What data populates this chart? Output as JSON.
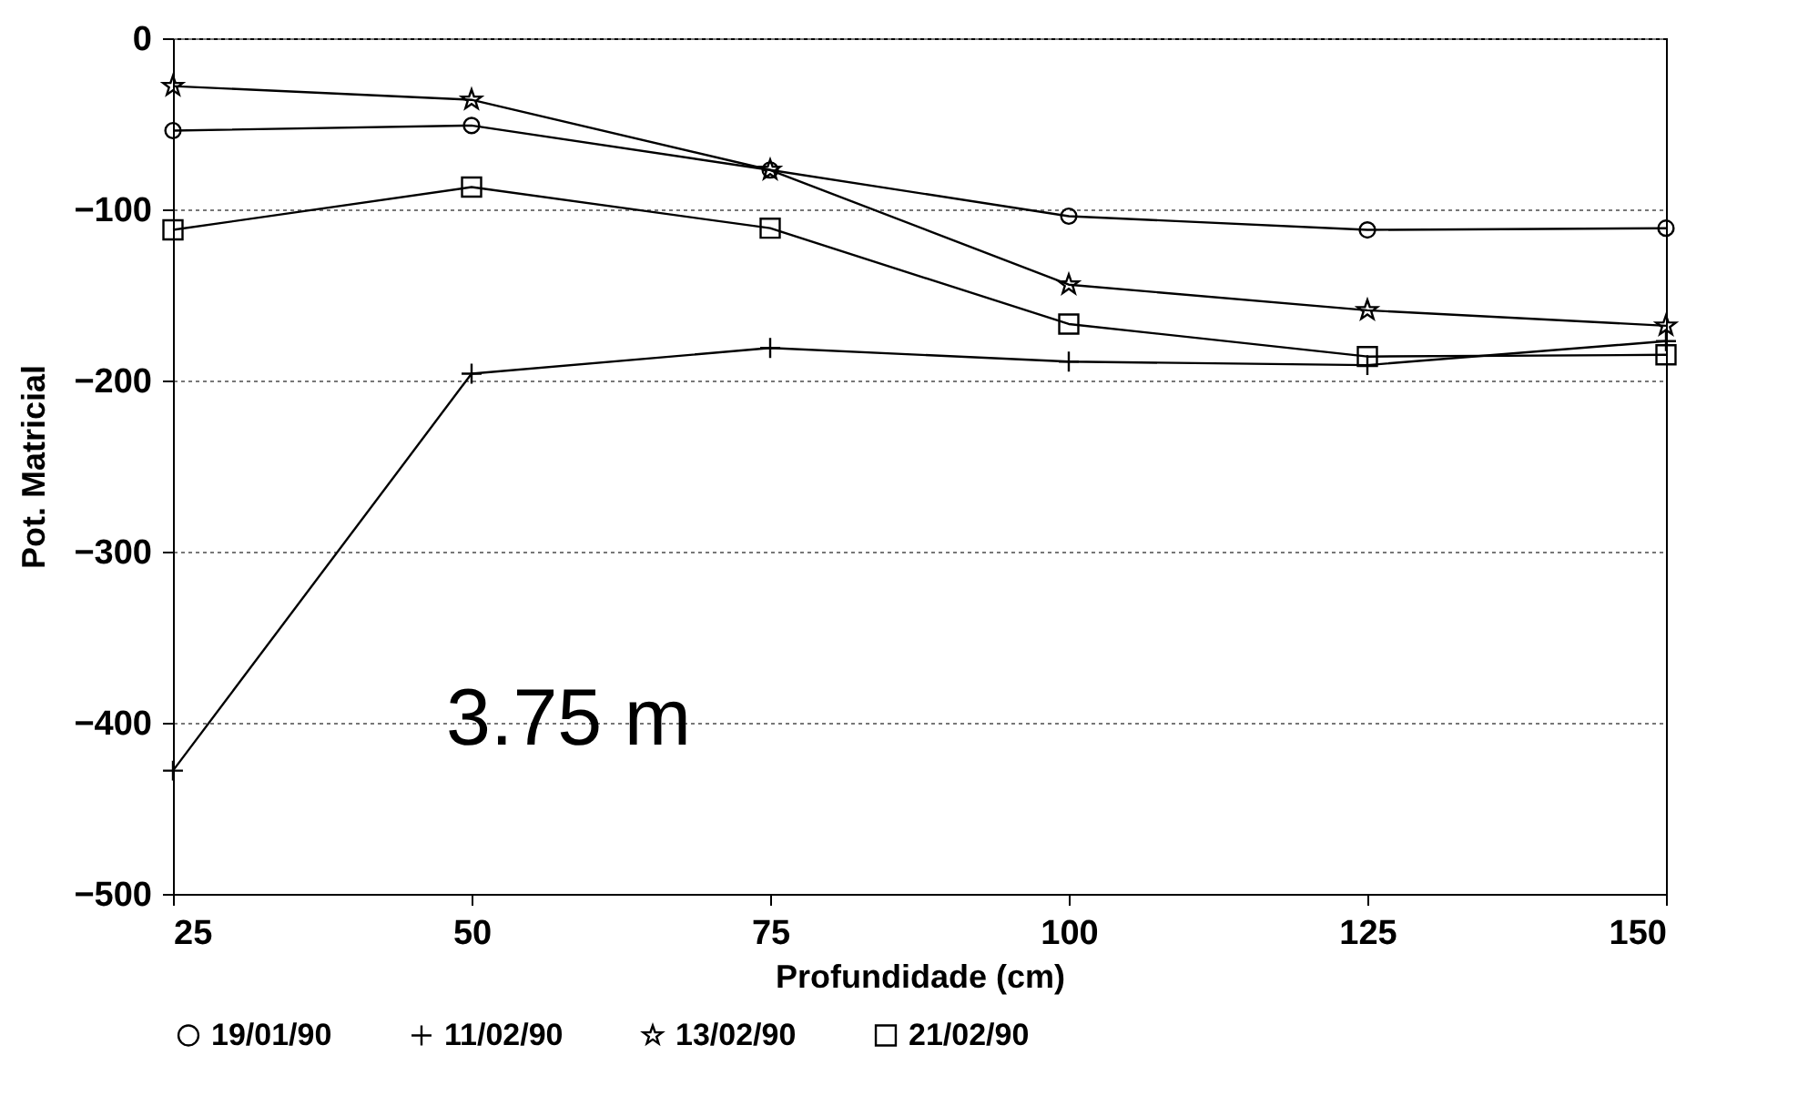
{
  "chart_data": {
    "type": "line",
    "xlabel": "Profundidade (cm)",
    "ylabel": "Pot. Matricial",
    "x": [
      25,
      50,
      75,
      100,
      125,
      150
    ],
    "xlim": [
      25,
      150
    ],
    "xticks": [
      25,
      50,
      75,
      100,
      125,
      150
    ],
    "ylim": [
      -500,
      0
    ],
    "yticks": [
      -500,
      -400,
      -300,
      -200,
      -100,
      0
    ],
    "grid": "y",
    "legend": "bottom",
    "line_style": "solid",
    "annotations": [
      "3.75 m"
    ],
    "series": [
      {
        "name": "19/01/90",
        "color": "#000000",
        "marker": "circle",
        "values": [
          -54,
          -51,
          -77,
          -104,
          -112,
          -111
        ]
      },
      {
        "name": "11/02/90",
        "color": "#000000",
        "marker": "cross",
        "values": [
          -428,
          -196,
          -181,
          -189,
          -191,
          -177
        ]
      },
      {
        "name": "13/02/90",
        "color": "#000000",
        "marker": "star",
        "values": [
          -28,
          -36,
          -77,
          -144,
          -159,
          -168
        ]
      },
      {
        "name": "21/02/90",
        "color": "#000000",
        "marker": "square",
        "values": [
          -112,
          -87,
          -111,
          -167,
          -186,
          -185
        ]
      }
    ]
  }
}
